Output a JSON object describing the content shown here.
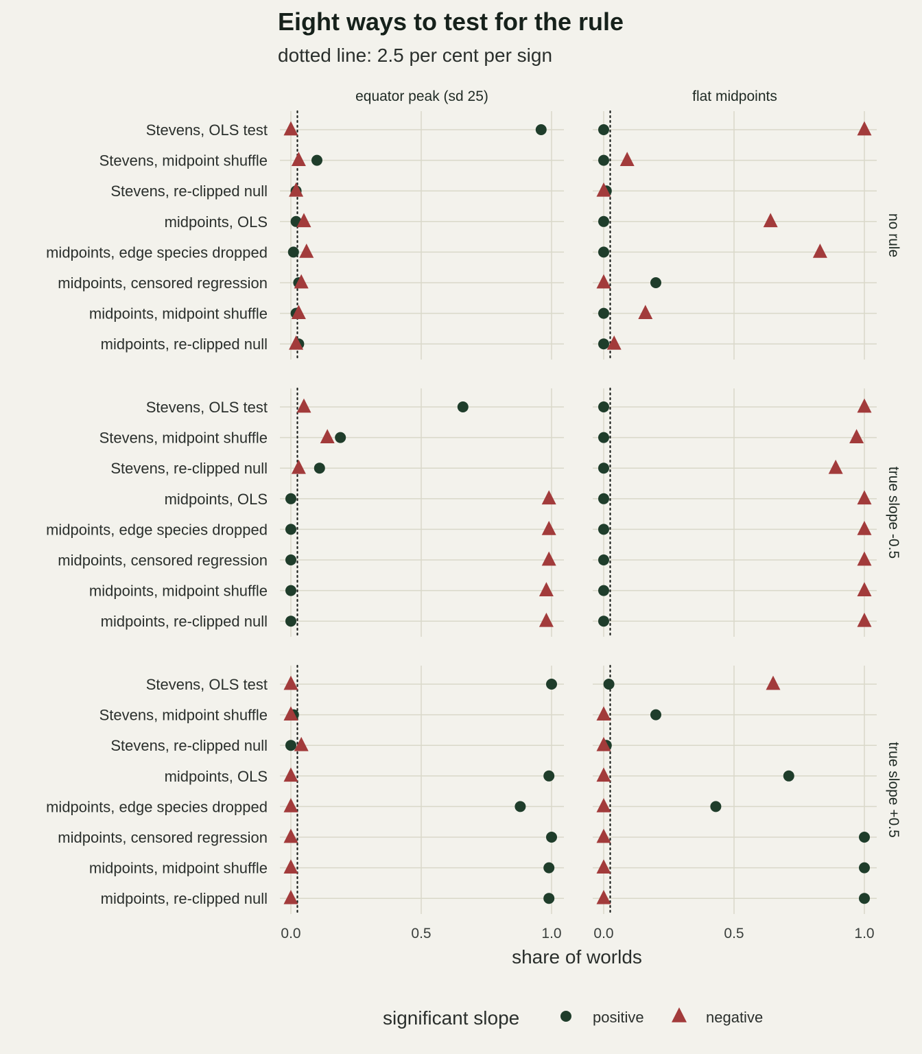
{
  "colors": {
    "positive": "#1f3d2b",
    "negative": "#a23b3b",
    "background": "#f3f2ec",
    "grid": "#d9d8c9"
  },
  "chart_data": {
    "type": "scatter",
    "title": "Eight ways to test for the rule",
    "subtitle": "dotted line: 2.5 per cent per sign",
    "xlabel": "share of worlds",
    "xlim": [
      0,
      1
    ],
    "xticks": [
      "0.0",
      "0.5",
      "1.0"
    ],
    "xtick_values": [
      0,
      0.5,
      1
    ],
    "reference_line": 0.025,
    "columns": [
      "equator peak (sd 25)",
      "flat midpoints"
    ],
    "rows": [
      "no rule",
      "true slope -0.5",
      "true slope +0.5"
    ],
    "methods": [
      "Stevens, OLS test",
      "Stevens, midpoint shuffle",
      "Stevens, re-clipped null",
      "midpoints, OLS",
      "midpoints, edge species dropped",
      "midpoints, censored regression",
      "midpoints, midpoint shuffle",
      "midpoints, re-clipped null"
    ],
    "legend": {
      "title": "significant slope",
      "position": "bottom",
      "items": [
        "positive",
        "negative"
      ]
    },
    "panels": [
      {
        "row": "no rule",
        "col": "equator peak (sd 25)",
        "positive": [
          0.96,
          0.1,
          0.02,
          0.02,
          0.01,
          0.03,
          0.02,
          0.03
        ],
        "negative": [
          0.0,
          0.03,
          0.02,
          0.05,
          0.06,
          0.04,
          0.03,
          0.02
        ]
      },
      {
        "row": "no rule",
        "col": "flat midpoints",
        "positive": [
          0.0,
          0.0,
          0.01,
          0.0,
          0.0,
          0.2,
          0.0,
          0.0
        ],
        "negative": [
          1.0,
          0.09,
          0.0,
          0.64,
          0.83,
          0.0,
          0.16,
          0.04
        ]
      },
      {
        "row": "true slope -0.5",
        "col": "equator peak (sd 25)",
        "positive": [
          0.66,
          0.19,
          0.11,
          0.0,
          0.0,
          0.0,
          0.0,
          0.0
        ],
        "negative": [
          0.05,
          0.14,
          0.03,
          0.99,
          0.99,
          0.99,
          0.98,
          0.98
        ]
      },
      {
        "row": "true slope -0.5",
        "col": "flat midpoints",
        "positive": [
          0.0,
          0.0,
          0.0,
          0.0,
          0.0,
          0.0,
          0.0,
          0.0
        ],
        "negative": [
          1.0,
          0.97,
          0.89,
          1.0,
          1.0,
          1.0,
          1.0,
          1.0
        ]
      },
      {
        "row": "true slope +0.5",
        "col": "equator peak (sd 25)",
        "positive": [
          1.0,
          0.01,
          0.0,
          0.99,
          0.88,
          1.0,
          0.99,
          0.99
        ],
        "negative": [
          0.0,
          0.0,
          0.04,
          0.0,
          0.0,
          0.0,
          0.0,
          0.0
        ]
      },
      {
        "row": "true slope +0.5",
        "col": "flat midpoints",
        "positive": [
          0.02,
          0.2,
          0.01,
          0.71,
          0.43,
          1.0,
          1.0,
          1.0
        ],
        "negative": [
          0.65,
          0.0,
          0.0,
          0.0,
          0.0,
          0.0,
          0.0,
          0.0
        ]
      }
    ]
  }
}
